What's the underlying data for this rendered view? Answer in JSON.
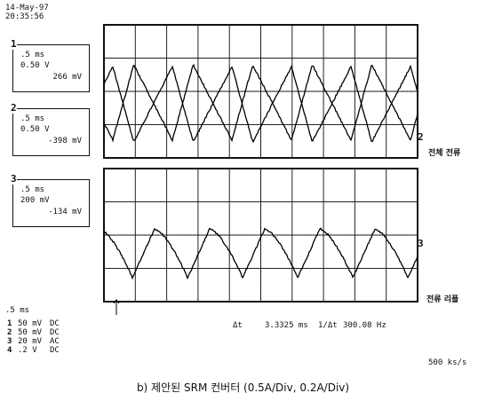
{
  "header": {
    "date": "14-May-97",
    "time": "20:35:56"
  },
  "channels": [
    {
      "number": "1",
      "timebase": ".5 ms",
      "scale": "0.50 V",
      "offset": "266 mV"
    },
    {
      "number": "2",
      "timebase": ".5 ms",
      "scale": "0.50 V",
      "offset": "-398 mV"
    },
    {
      "number": "3",
      "timebase": ".5 ms",
      "scale": "200 mV",
      "offset": "-134 mV"
    }
  ],
  "traces": {
    "ch2_marker": "2",
    "ch2_label": "전체 전류",
    "ch3_marker": "3",
    "ch3_label": "전류 리플"
  },
  "footer": {
    "timebase": ".5 ms",
    "channel_settings": [
      {
        "number": "1",
        "scale": "50 mV",
        "coupling": "DC"
      },
      {
        "number": "2",
        "scale": "50 mV",
        "coupling": "DC"
      },
      {
        "number": "3",
        "scale": "20 mV",
        "coupling": "AC"
      },
      {
        "number": "4",
        "scale": ".2 V",
        "coupling": "DC"
      }
    ],
    "delta_t_label": "Δt",
    "delta_t": "3.3325 ms",
    "inverse_label": "1/Δt",
    "frequency": "300.08 Hz",
    "sample_rate": "500 ks/s"
  },
  "caption": "b) 제안된 SRM 컨버터 (0.5A/Div, 0.2A/Div)"
}
